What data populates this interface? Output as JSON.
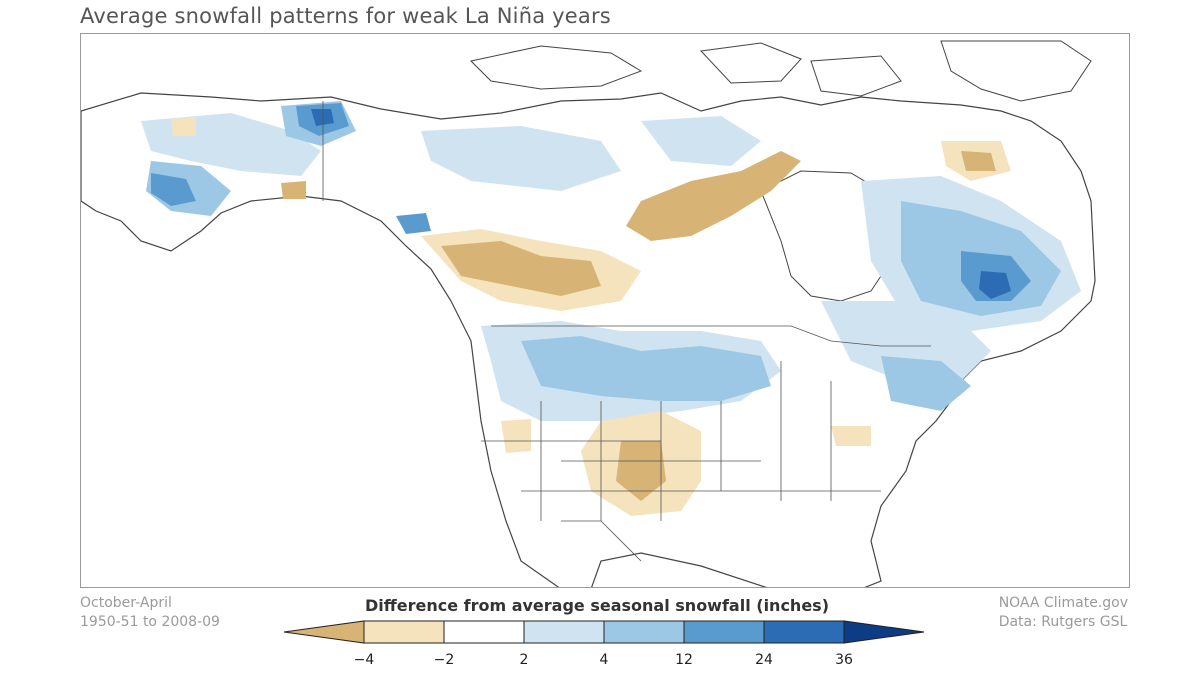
{
  "title": "Average snowfall patterns for weak La Niña years",
  "period_line1": "October-April",
  "period_line2": "1950-51 to 2008-09",
  "credit_line1": "NOAA Climate.gov",
  "credit_line2": "Data: Rutgers GSL",
  "legend": {
    "title": "Difference from average seasonal snowfall (inches)",
    "ticks": [
      "−4",
      "−2",
      "2",
      "4",
      "12",
      "24",
      "36"
    ],
    "bins": [
      {
        "range": "< −4",
        "color": "#d7b476"
      },
      {
        "range": "−4 to −2",
        "color": "#f4e3bd"
      },
      {
        "range": "−2 to 2",
        "color": "#ffffff"
      },
      {
        "range": "2 to 4",
        "color": "#cfe3f1"
      },
      {
        "range": "4 to 12",
        "color": "#9cc8e6"
      },
      {
        "range": "12 to 24",
        "color": "#5a9bcf"
      },
      {
        "range": "24 to 36",
        "color": "#2b6cb4"
      },
      {
        "range": "> 36",
        "color": "#0c3c84"
      }
    ]
  },
  "colors": {
    "land_outline": "#444444",
    "frame": "#9a9a9a",
    "title_text": "#555555",
    "caption_text": "#9a9a9a"
  }
}
